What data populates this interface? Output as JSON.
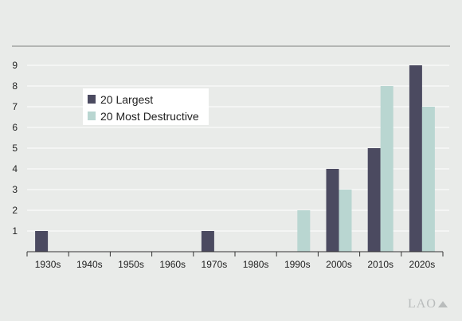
{
  "chart_data": {
    "type": "bar",
    "categories": [
      "1930s",
      "1940s",
      "1950s",
      "1960s",
      "1970s",
      "1980s",
      "1990s",
      "2000s",
      "2010s",
      "2020s"
    ],
    "series": [
      {
        "name": "20 Largest",
        "color": "#4b4a60",
        "values": [
          1,
          0,
          0,
          0,
          1,
          0,
          0,
          4,
          5,
          9
        ]
      },
      {
        "name": "20 Most Destructive",
        "color": "#b9d6d1",
        "values": [
          0,
          0,
          0,
          0,
          0,
          0,
          2,
          3,
          8,
          7
        ]
      }
    ],
    "y_ticks": [
      "1",
      "2",
      "3",
      "4",
      "5",
      "6",
      "7",
      "8",
      "9"
    ],
    "ylim": [
      0,
      9
    ],
    "grid": true,
    "legend_position": "top-left"
  },
  "logo": {
    "text": "LAO"
  },
  "colors": {
    "background": "#e9ebe9",
    "grid": "#ffffff",
    "axis": "#333333",
    "rule": "#7f8080"
  }
}
